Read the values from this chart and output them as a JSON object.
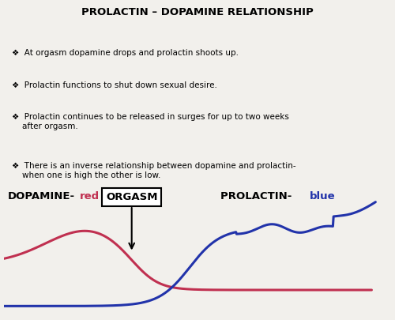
{
  "title": "PROLACTIN – DOPAMINE RELATIONSHIP",
  "bg_color": "#f2f0ec",
  "bullet_points": [
    "❖  At orgasm dopamine drops and prolactin shoots up.",
    "❖  Prolactin functions to shut down sexual desire.",
    "❖  Prolactin continues to be released in surges for up to two weeks\n    after orgasm.",
    "❖  There is an inverse relationship between dopamine and prolactin-\n    when one is high the other is low."
  ],
  "orgasm_label": "ORGASM",
  "dopamine_label_black": "DOPAMINE-",
  "dopamine_label_red": "red",
  "prolactin_label_black": "PROLACTIN- ",
  "prolactin_label_blue": "blue",
  "red_color": "#c03050",
  "blue_color": "#2233aa",
  "title_fontsize": 9.5,
  "bullet_fontsize": 7.5,
  "label_fontsize": 9.5
}
